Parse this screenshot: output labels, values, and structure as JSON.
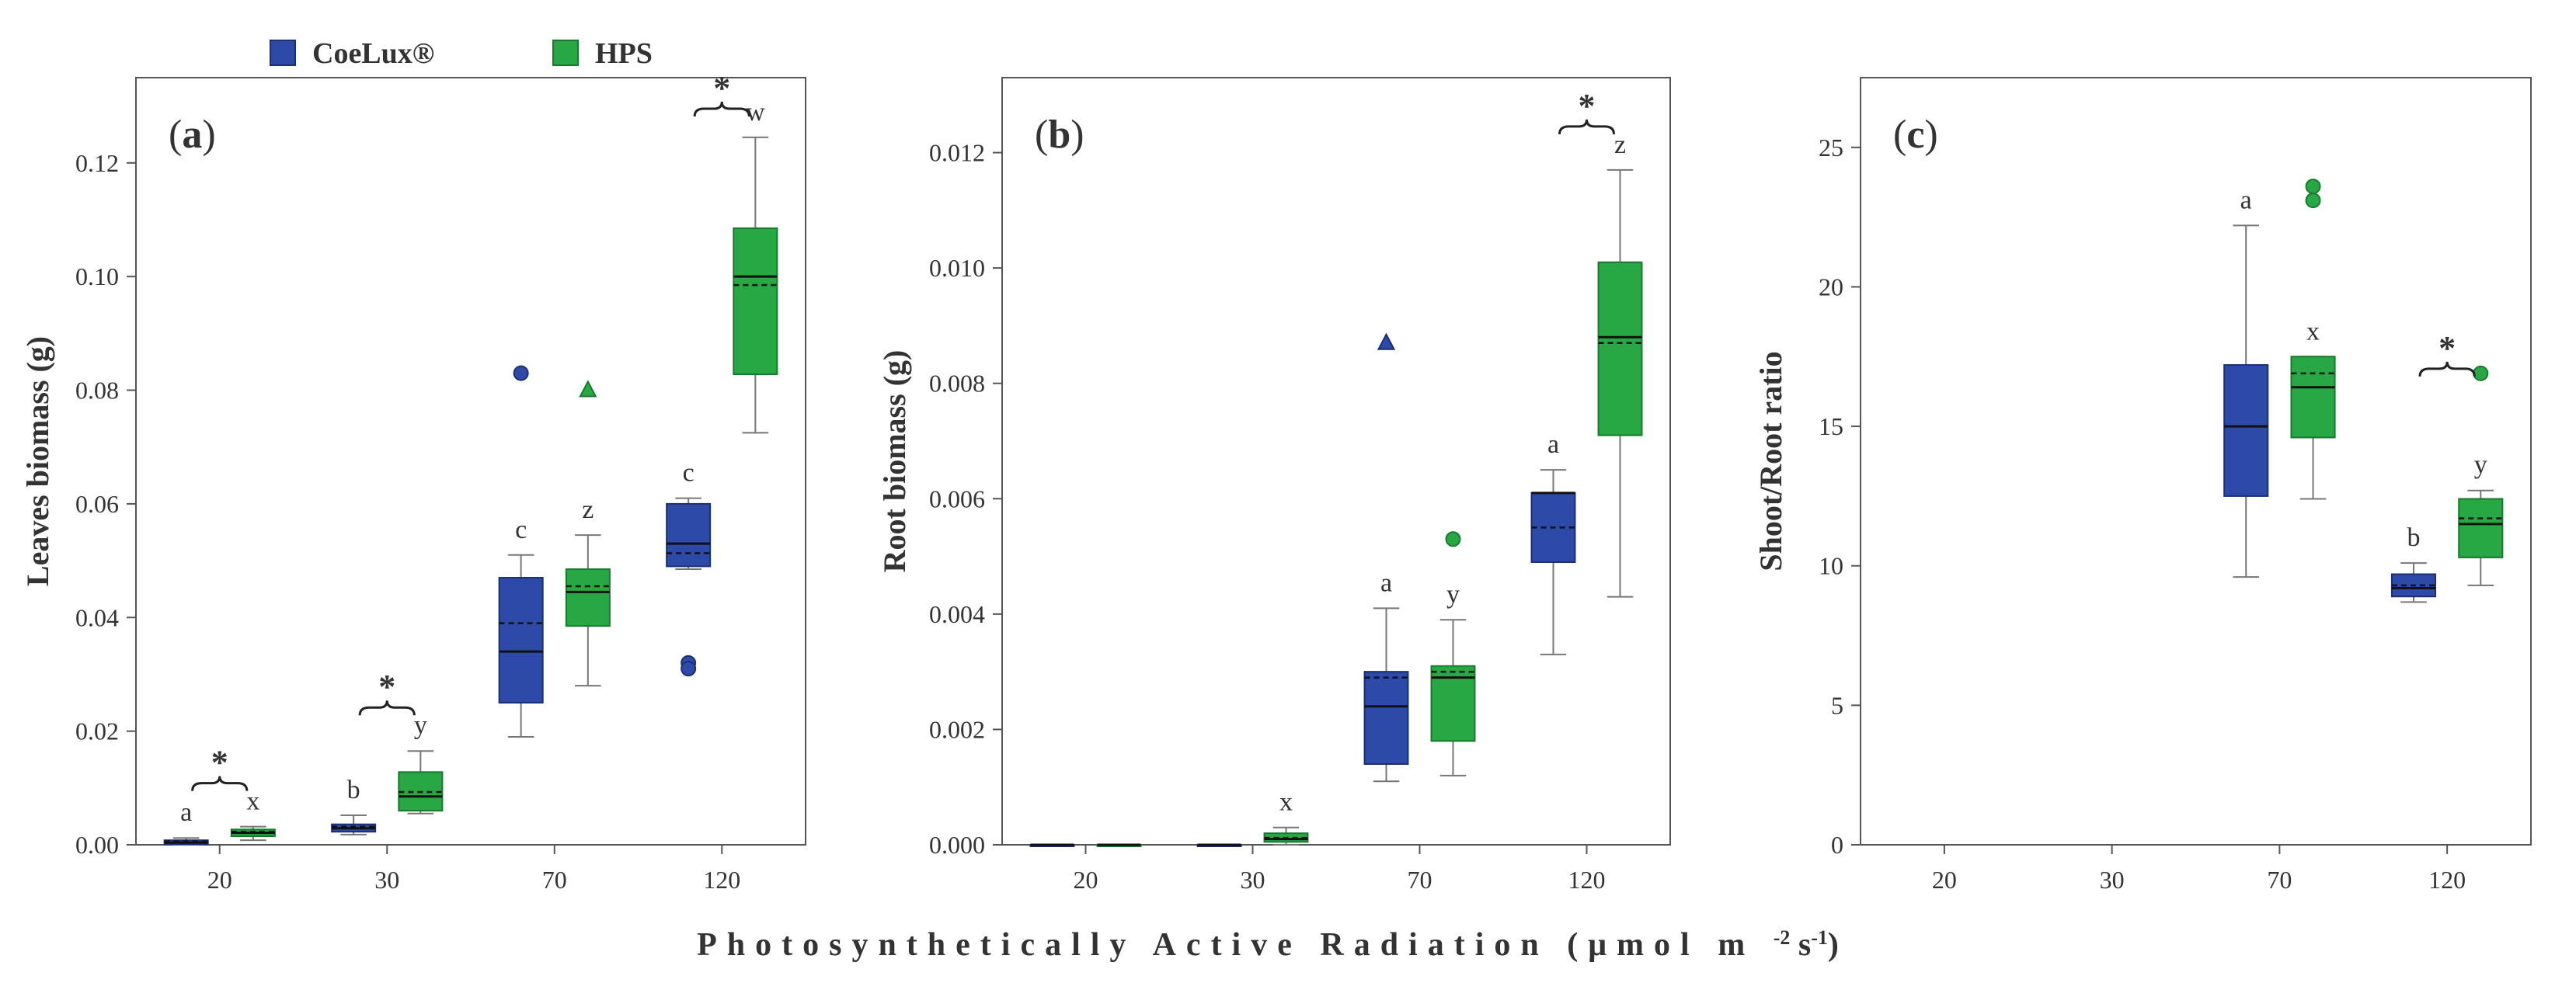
{
  "legend": [
    {
      "name": "CoeLux®",
      "color": "#2E4AA8"
    },
    {
      "name": "HPS",
      "color": "#27A844"
    }
  ],
  "x_axis_label": "Photosynthetically   Active   Radiation   (μmol m",
  "x_axis_unit_tail": [
    {
      "text": "-2",
      "sup": true
    },
    {
      "text": " s",
      "sup": false
    },
    {
      "text": "-1",
      "sup": true
    },
    {
      "text": ")",
      "sup": false
    }
  ],
  "chart_data": [
    {
      "type": "box",
      "panel": "(a)",
      "panel_letter": "a",
      "ylabel": "Leaves biomass (g)",
      "categories": [
        "20",
        "30",
        "70",
        "120"
      ],
      "ylim": [
        0,
        0.135
      ],
      "yticks": [
        0.0,
        0.02,
        0.04,
        0.06,
        0.08,
        0.1,
        0.12
      ],
      "ytick_labels": [
        "0.00",
        "0.02",
        "0.04",
        "0.06",
        "0.08",
        "0.10",
        "0.12"
      ],
      "series": [
        {
          "name": "CoeLux®",
          "boxes": [
            {
              "category": "20",
              "whisker_low": 0.0,
              "q1": 0.0001,
              "median": 0.0004,
              "mean": 0.0006,
              "q3": 0.0008,
              "whisker_high": 0.0012,
              "outliers": [],
              "letter": "a"
            },
            {
              "category": "30",
              "whisker_low": 0.0018,
              "q1": 0.0023,
              "median": 0.0029,
              "mean": 0.0032,
              "q3": 0.0036,
              "whisker_high": 0.0052,
              "outliers": [],
              "letter": "b"
            },
            {
              "category": "70",
              "whisker_low": 0.019,
              "q1": 0.025,
              "median": 0.034,
              "mean": 0.039,
              "q3": 0.047,
              "whisker_high": 0.051,
              "outliers": [
                {
                  "value": 0.083,
                  "shape": "circle"
                }
              ],
              "letter": "c"
            },
            {
              "category": "120",
              "whisker_low": 0.0485,
              "q1": 0.049,
              "median": 0.053,
              "mean": 0.0513,
              "q3": 0.06,
              "whisker_high": 0.061,
              "outliers": [
                {
                  "value": 0.032,
                  "shape": "circle"
                },
                {
                  "value": 0.031,
                  "shape": "circle"
                }
              ],
              "letter": "c"
            }
          ]
        },
        {
          "name": "HPS",
          "boxes": [
            {
              "category": "20",
              "whisker_low": 0.0008,
              "q1": 0.0015,
              "median": 0.0021,
              "mean": 0.0023,
              "q3": 0.0027,
              "whisker_high": 0.0032,
              "outliers": [],
              "letter": "x"
            },
            {
              "category": "30",
              "whisker_low": 0.0055,
              "q1": 0.006,
              "median": 0.0085,
              "mean": 0.0093,
              "q3": 0.0128,
              "whisker_high": 0.0165,
              "outliers": [],
              "letter": "y"
            },
            {
              "category": "70",
              "whisker_low": 0.028,
              "q1": 0.0385,
              "median": 0.0445,
              "mean": 0.0455,
              "q3": 0.0485,
              "whisker_high": 0.0545,
              "outliers": [
                {
                  "value": 0.08,
                  "shape": "triangle"
                }
              ],
              "letter": "z"
            },
            {
              "category": "120",
              "whisker_low": 0.0725,
              "q1": 0.0828,
              "median": 0.1,
              "mean": 0.0985,
              "q3": 0.1085,
              "whisker_high": 0.1245,
              "outliers": [],
              "letter": "w"
            }
          ]
        }
      ],
      "significance": [
        "20",
        "30",
        "120"
      ],
      "significance_mark": "*"
    },
    {
      "type": "box",
      "panel": "(b)",
      "panel_letter": "b",
      "ylabel": "Root biomass (g)",
      "categories": [
        "20",
        "30",
        "70",
        "120"
      ],
      "ylim": [
        0,
        0.0133
      ],
      "yticks": [
        0.0,
        0.002,
        0.004,
        0.006,
        0.008,
        0.01,
        0.012
      ],
      "ytick_labels": [
        "0.000",
        "0.002",
        "0.004",
        "0.006",
        "0.008",
        "0.010",
        "0.012"
      ],
      "series": [
        {
          "name": "CoeLux®",
          "boxes": [
            {
              "category": "20",
              "whisker_low": 0.0,
              "q1": 0.0,
              "median": 0.0,
              "mean": 0.0,
              "q3": 0.0,
              "whisker_high": 0.0,
              "outliers": [],
              "letter": ""
            },
            {
              "category": "30",
              "whisker_low": 0.0,
              "q1": 0.0,
              "median": 0.0,
              "mean": 0.0,
              "q3": 0.0,
              "whisker_high": 0.0,
              "outliers": [],
              "letter": ""
            },
            {
              "category": "70",
              "whisker_low": 0.0011,
              "q1": 0.0014,
              "median": 0.0024,
              "mean": 0.0029,
              "q3": 0.003,
              "whisker_high": 0.0041,
              "outliers": [
                {
                  "value": 0.0087,
                  "shape": "triangle"
                }
              ],
              "letter": "a"
            },
            {
              "category": "120",
              "whisker_low": 0.0033,
              "q1": 0.0049,
              "median": 0.0061,
              "mean": 0.0055,
              "q3": 0.0061,
              "whisker_high": 0.0065,
              "outliers": [],
              "letter": "a"
            }
          ]
        },
        {
          "name": "HPS",
          "boxes": [
            {
              "category": "20",
              "whisker_low": 0.0,
              "q1": 0.0,
              "median": 0.0,
              "mean": 0.0,
              "q3": 0.0,
              "whisker_high": 0.0,
              "outliers": [],
              "letter": ""
            },
            {
              "category": "30",
              "whisker_low": 0.0,
              "q1": 5e-05,
              "median": 0.0001,
              "mean": 0.00012,
              "q3": 0.0002,
              "whisker_high": 0.0003,
              "outliers": [],
              "letter": "x"
            },
            {
              "category": "70",
              "whisker_low": 0.0012,
              "q1": 0.0018,
              "median": 0.0029,
              "mean": 0.003,
              "q3": 0.0031,
              "whisker_high": 0.0039,
              "outliers": [
                {
                  "value": 0.0053,
                  "shape": "circle"
                }
              ],
              "letter": "y"
            },
            {
              "category": "120",
              "whisker_low": 0.0043,
              "q1": 0.0071,
              "median": 0.0088,
              "mean": 0.0087,
              "q3": 0.0101,
              "whisker_high": 0.0117,
              "outliers": [],
              "letter": "z"
            }
          ]
        }
      ],
      "significance": [
        "120"
      ],
      "significance_mark": "*"
    },
    {
      "type": "box",
      "panel": "(c)",
      "panel_letter": "c",
      "ylabel": "Shoot/Root ratio",
      "categories": [
        "20",
        "30",
        "70",
        "120"
      ],
      "ylim": [
        0,
        27.5
      ],
      "yticks": [
        0,
        5,
        10,
        15,
        20,
        25
      ],
      "ytick_labels": [
        "0",
        "5",
        "10",
        "15",
        "20",
        "25"
      ],
      "series": [
        {
          "name": "CoeLux®",
          "boxes": [
            {
              "category": "70",
              "whisker_low": 9.6,
              "q1": 12.5,
              "median": 15.0,
              "mean": 15.0,
              "q3": 17.2,
              "whisker_high": 22.2,
              "outliers": [],
              "letter": "a"
            },
            {
              "category": "120",
              "whisker_low": 8.7,
              "q1": 8.9,
              "median": 9.2,
              "mean": 9.3,
              "q3": 9.7,
              "whisker_high": 10.1,
              "outliers": [],
              "letter": "b"
            }
          ]
        },
        {
          "name": "HPS",
          "boxes": [
            {
              "category": "70",
              "whisker_low": 12.4,
              "q1": 14.6,
              "median": 16.4,
              "mean": 16.9,
              "q3": 17.5,
              "whisker_high": 17.5,
              "outliers": [
                {
                  "value": 23.6,
                  "shape": "circle"
                },
                {
                  "value": 23.1,
                  "shape": "circle"
                }
              ],
              "letter": "x"
            },
            {
              "category": "120",
              "whisker_low": 9.3,
              "q1": 10.3,
              "median": 11.5,
              "mean": 11.7,
              "q3": 12.4,
              "whisker_high": 12.7,
              "outliers": [
                {
                  "value": 16.9,
                  "shape": "circle"
                }
              ],
              "letter": "y"
            }
          ]
        }
      ],
      "significance": [
        "120"
      ],
      "significance_mark": "*"
    }
  ]
}
